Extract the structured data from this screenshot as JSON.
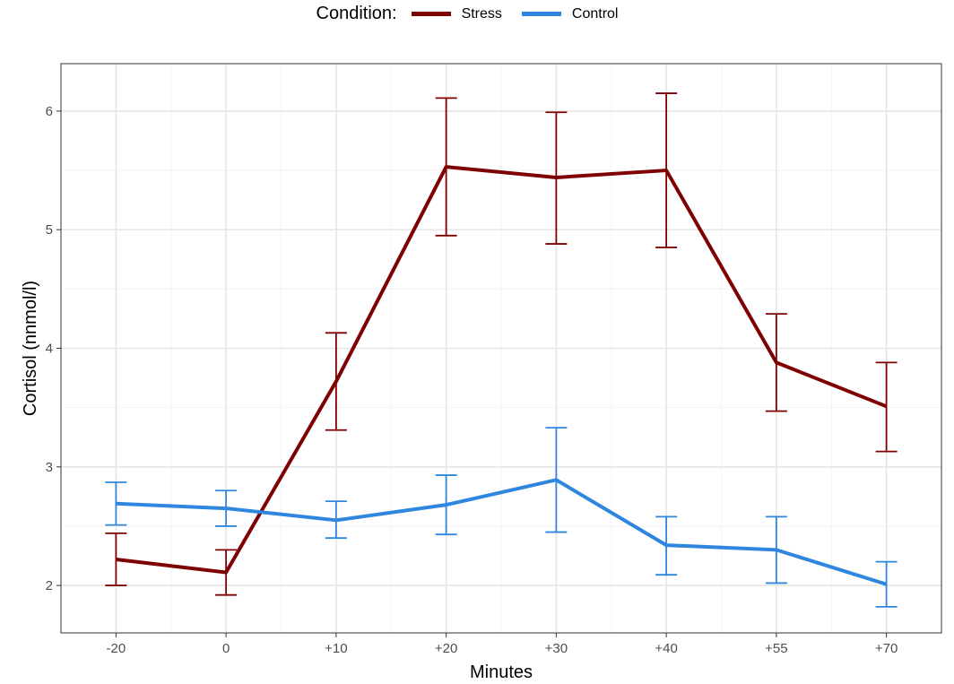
{
  "legend": {
    "title": "Condition:",
    "items": [
      {
        "label": "Stress",
        "color": "#7f0000"
      },
      {
        "label": "Control",
        "color": "#2e86de"
      }
    ]
  },
  "chart_data": {
    "type": "line",
    "xlabel": "Minutes",
    "ylabel": "Cortisol (nnmol/l)",
    "categories": [
      "-20",
      "0",
      "+10",
      "+20",
      "+30",
      "+40",
      "+55",
      "+70"
    ],
    "ylim": [
      1.6,
      6.4
    ],
    "yticks": [
      2,
      3,
      4,
      5,
      6
    ],
    "grid": true,
    "legend_position": "top",
    "error_bars": true,
    "series": [
      {
        "name": "Stress",
        "color": "#7f0000",
        "values": [
          2.22,
          2.11,
          3.72,
          5.53,
          5.44,
          5.5,
          3.88,
          3.51
        ],
        "lower": [
          2.0,
          1.92,
          3.31,
          4.95,
          4.88,
          4.85,
          3.47,
          3.13
        ],
        "upper": [
          2.44,
          2.3,
          4.13,
          6.11,
          5.99,
          6.15,
          4.29,
          3.88
        ]
      },
      {
        "name": "Control",
        "color": "#2e86de",
        "values": [
          2.69,
          2.65,
          2.55,
          2.68,
          2.89,
          2.34,
          2.3,
          2.01
        ],
        "lower": [
          2.51,
          2.5,
          2.4,
          2.43,
          2.45,
          2.09,
          2.02,
          1.82
        ],
        "upper": [
          2.87,
          2.8,
          2.71,
          2.93,
          3.33,
          2.58,
          2.58,
          2.2
        ]
      }
    ]
  }
}
